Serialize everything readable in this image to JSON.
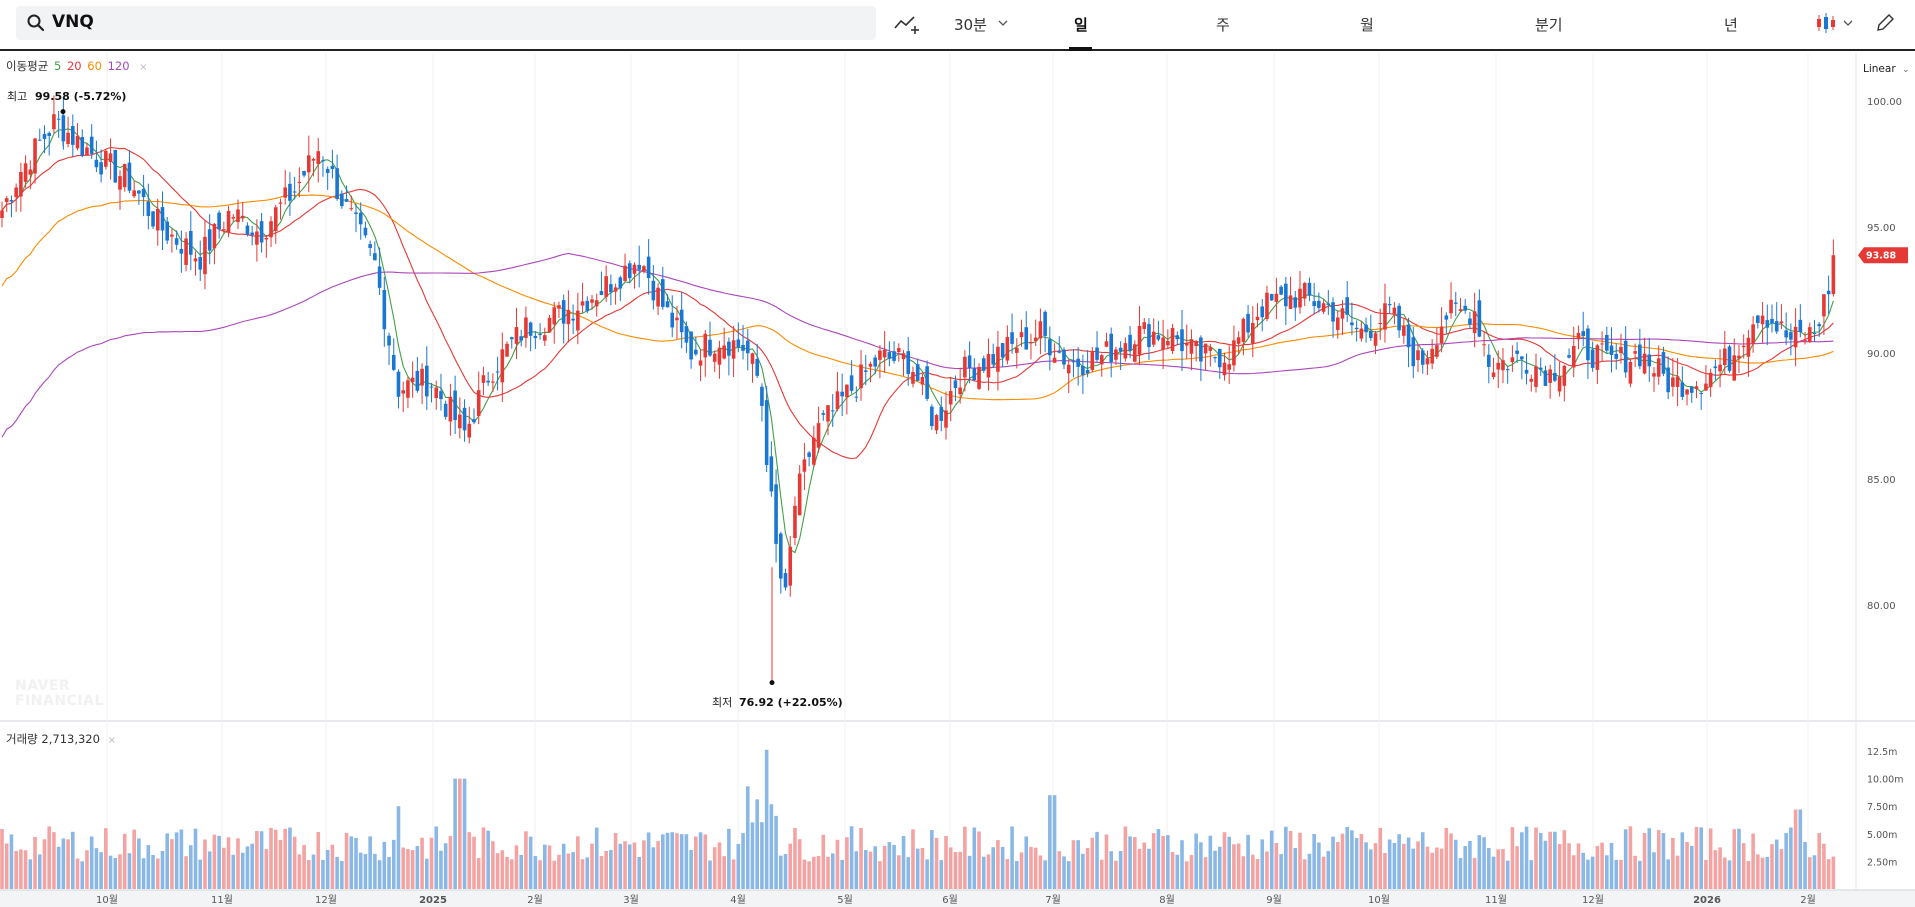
{
  "search": {
    "value": "VNQ"
  },
  "toolbar": {
    "indicator_icon": "indicator-line-icon",
    "interval": "30분",
    "tabs": [
      "일",
      "주",
      "월",
      "분기",
      "년"
    ],
    "active_tab": "일",
    "chart_type_icon": "candlestick-icon",
    "edit_icon": "pencil-icon"
  },
  "legend": {
    "label": "이동평균",
    "periods": [
      {
        "text": "5",
        "color": "#43a047"
      },
      {
        "text": "20",
        "color": "#e53935"
      },
      {
        "text": "60",
        "color": "#fb8c00"
      },
      {
        "text": "120",
        "color": "#ab47bc"
      }
    ],
    "close_glyph": "×"
  },
  "scale_mode": "Linear",
  "watermark": [
    "NAVER",
    "FINANCIAL"
  ],
  "price_axis": {
    "ticks": [
      "100.00",
      "95.00",
      "90.00",
      "85.00",
      "80.00"
    ],
    "current_value": "93.88",
    "current_color": "#e53935"
  },
  "annotations": {
    "high": {
      "label": "최고",
      "value": "99.58 (-5.72%)"
    },
    "low": {
      "label": "최저",
      "value": "76.92 (+22.05%)"
    }
  },
  "volume": {
    "label": "거래량",
    "value": "2,713,320",
    "ticks": [
      "12.5m",
      "10.00m",
      "7.50m",
      "5.00m",
      "2.50m"
    ]
  },
  "x_axis": {
    "labels": [
      "10월",
      "11월",
      "12월",
      "2025",
      "2월",
      "3월",
      "4월",
      "5월",
      "6월",
      "7월",
      "8월",
      "9월",
      "10월",
      "11월",
      "12월",
      "2026",
      "2월"
    ]
  },
  "chart_data": {
    "type": "candlestick",
    "colors": {
      "up": "#e53935",
      "down": "#1976d2",
      "volume_up": "#f4a3a3",
      "volume_down": "#8ab8e6"
    },
    "x": [
      "2024-09",
      "2024-10",
      "2024-11",
      "2024-12",
      "2025-01",
      "2025-02",
      "2025-03",
      "2025-04",
      "2025-05",
      "2025-06",
      "2025-07",
      "2025-08",
      "2025-09",
      "2025-10",
      "2025-11",
      "2025-12",
      "2026-01",
      "2026-02"
    ],
    "close": [
      95.5,
      98.0,
      93.5,
      96.5,
      88.0,
      91.5,
      93.0,
      90.0,
      87.0,
      89.8,
      90.2,
      90.3,
      92.0,
      91.0,
      89.5,
      88.5,
      89.5,
      93.88
    ],
    "ylim": [
      76.0,
      100.5
    ],
    "high": 99.58,
    "low": 76.92,
    "last": 93.88,
    "volume_ylim": [
      0,
      13500000
    ],
    "moving_averages": [
      {
        "name": "5",
        "color": "#43a047"
      },
      {
        "name": "20",
        "color": "#e53935"
      },
      {
        "name": "60",
        "color": "#fb8c00"
      },
      {
        "name": "120",
        "color": "#ab47bc"
      }
    ]
  }
}
